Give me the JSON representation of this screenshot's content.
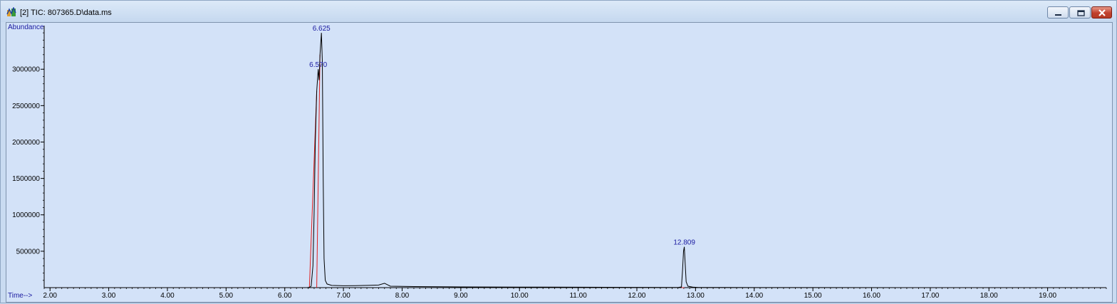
{
  "window": {
    "title": "[2] TIC: 807365.D\\data.ms",
    "icon": "chromatogram-app-icon",
    "controls": [
      "minimize",
      "maximize",
      "close"
    ]
  },
  "colors": {
    "background": "#d3e2f8",
    "trace": "#000000",
    "baseline_marker": "#e02020",
    "label": "#1a1aa0"
  },
  "chart_data": {
    "type": "line",
    "title": "",
    "ylabel": "Abundance",
    "xlabel": "Time-->",
    "xlim": [
      1.9,
      20.0
    ],
    "ylim": [
      0,
      3550000
    ],
    "x_ticks": [
      2,
      3,
      4,
      5,
      6,
      7,
      8,
      9,
      10,
      11,
      12,
      13,
      14,
      15,
      16,
      17,
      18,
      19
    ],
    "x_tick_labels": [
      "2.00",
      "3.00",
      "4.00",
      "5.00",
      "6.00",
      "7.00",
      "8.00",
      "9.00",
      "10.00",
      "11.00",
      "12.00",
      "13.00",
      "14.00",
      "15.00",
      "16.00",
      "17.00",
      "18.00",
      "19.00"
    ],
    "y_ticks": [
      500000,
      1000000,
      1500000,
      2000000,
      2500000,
      3000000
    ],
    "y_tick_labels": [
      "500000",
      "1000000",
      "1500000",
      "2000000",
      "2500000",
      "3000000"
    ],
    "series": [
      {
        "points": [
          [
            1.9,
            0
          ],
          [
            6.38,
            0
          ],
          [
            6.42,
            5000
          ],
          [
            6.45,
            20000
          ],
          [
            6.48,
            300000
          ],
          [
            6.5,
            1000000
          ],
          [
            6.52,
            2000000
          ],
          [
            6.545,
            2700000
          ],
          [
            6.57,
            3000000
          ],
          [
            6.585,
            2850000
          ],
          [
            6.6,
            3200000
          ],
          [
            6.625,
            3500000
          ],
          [
            6.64,
            3100000
          ],
          [
            6.655,
            1500000
          ],
          [
            6.67,
            400000
          ],
          [
            6.69,
            100000
          ],
          [
            6.72,
            50000
          ],
          [
            6.8,
            30000
          ],
          [
            7.0,
            25000
          ],
          [
            7.2,
            27000
          ],
          [
            7.4,
            30000
          ],
          [
            7.6,
            35000
          ],
          [
            7.7,
            60000
          ],
          [
            7.75,
            40000
          ],
          [
            7.8,
            20000
          ],
          [
            8.2,
            15000
          ],
          [
            9.0,
            10000
          ],
          [
            10.0,
            8000
          ],
          [
            11.0,
            6000
          ],
          [
            12.0,
            4000
          ],
          [
            12.7,
            3000
          ],
          [
            12.76,
            10000
          ],
          [
            12.78,
            250000
          ],
          [
            12.795,
            500000
          ],
          [
            12.809,
            560000
          ],
          [
            12.825,
            300000
          ],
          [
            12.84,
            80000
          ],
          [
            12.87,
            20000
          ],
          [
            12.95,
            8000
          ],
          [
            13.05,
            3000
          ],
          [
            13.5,
            1500
          ],
          [
            14.0,
            500
          ],
          [
            20.0,
            0
          ]
        ]
      }
    ],
    "peak_labels": [
      {
        "x": 6.625,
        "y": 3500000,
        "text": "6.625"
      },
      {
        "x": 6.57,
        "y": 3000000,
        "text": "6.570"
      },
      {
        "x": 12.809,
        "y": 560000,
        "text": "12.809"
      }
    ],
    "integration_markers": [
      {
        "points": [
          [
            6.42,
            0
          ],
          [
            6.545,
            2700000
          ]
        ]
      },
      {
        "points": [
          [
            6.545,
            0
          ],
          [
            6.6,
            3200000
          ]
        ]
      },
      {
        "points": [
          [
            12.76,
            0
          ],
          [
            12.809,
            0
          ]
        ]
      }
    ]
  }
}
